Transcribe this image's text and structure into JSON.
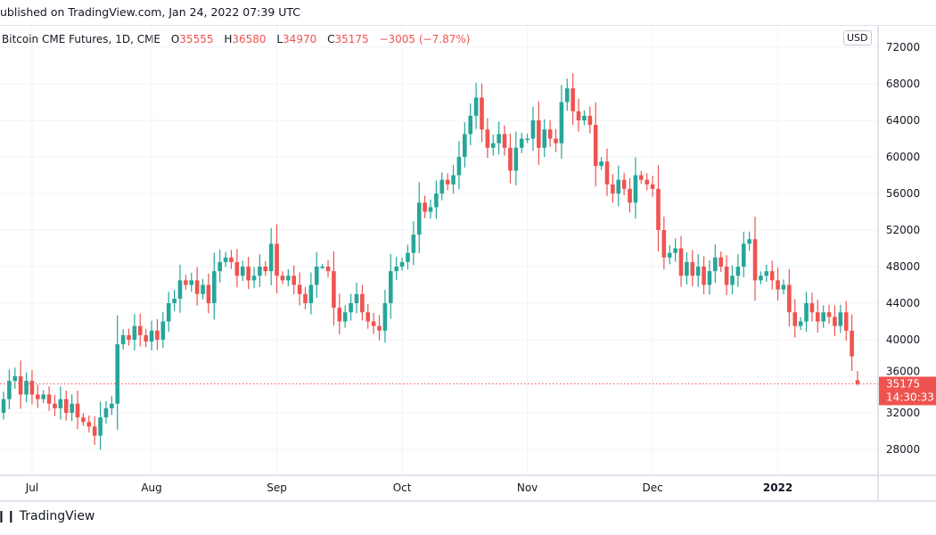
{
  "header": {
    "published": "ublished on TradingView.com, Jan 24, 2022 07:39 UTC",
    "symbol": "Bitcoin CME Futures, 1D, CME",
    "o_label": "O",
    "o_value": "35555",
    "h_label": "H",
    "h_value": "36580",
    "l_label": "L",
    "l_value": "34970",
    "c_label": "C",
    "c_value": "35175",
    "change": "−3005 (−7.87%)",
    "currency": "USD"
  },
  "footer": {
    "brand": "TradingView",
    "logo_icon": "tradingview-logo-icon"
  },
  "colors": {
    "up": "#26a69a",
    "down": "#ef5350",
    "grid": "#f0f3fa",
    "text": "#131722"
  },
  "chart_data": {
    "type": "candlestick",
    "title": "Bitcoin CME Futures, 1D, CME",
    "ylim": [
      26000,
      73500
    ],
    "y_ticks": [
      28000,
      32000,
      36000,
      40000,
      44000,
      48000,
      52000,
      56000,
      60000,
      64000,
      68000,
      72000
    ],
    "x_ticks": [
      {
        "label": "Jul",
        "candle_index": 5
      },
      {
        "label": "Aug",
        "candle_index": 26
      },
      {
        "label": "Sep",
        "candle_index": 48
      },
      {
        "label": "Oct",
        "candle_index": 70
      },
      {
        "label": "Nov",
        "candle_index": 92
      },
      {
        "label": "Dec",
        "candle_index": 114
      },
      {
        "label": "2022",
        "candle_index": 136
      }
    ],
    "grid": true,
    "closes": [
      33500,
      35500,
      36000,
      34000,
      35500,
      34000,
      33500,
      34000,
      33000,
      32500,
      33500,
      32000,
      33000,
      31500,
      31000,
      30500,
      29500,
      31500,
      32500,
      33000,
      39500,
      40500,
      40000,
      41500,
      40500,
      39800,
      41000,
      40000,
      42000,
      44000,
      44500,
      46500,
      46000,
      46500,
      45000,
      46000,
      44000,
      47500,
      48500,
      49000,
      48500,
      47000,
      48000,
      46500,
      47000,
      48000,
      47500,
      50500,
      47000,
      46500,
      47000,
      46000,
      45000,
      44000,
      46000,
      48000,
      48000,
      47500,
      43500,
      42000,
      43000,
      44000,
      45000,
      43000,
      42000,
      41500,
      41000,
      44000,
      47500,
      48000,
      48500,
      49500,
      51500,
      55000,
      54000,
      54500,
      56000,
      57500,
      57000,
      58000,
      60000,
      62500,
      64500,
      66500,
      63000,
      61000,
      61500,
      62500,
      61000,
      58500,
      61000,
      62000,
      62000,
      64000,
      61000,
      63000,
      62000,
      61500,
      66000,
      67500,
      65000,
      64000,
      64500,
      63500,
      59000,
      59500,
      57000,
      56000,
      57500,
      56500,
      55000,
      58000,
      57500,
      57000,
      56500,
      52000,
      49000,
      49500,
      50000,
      47000,
      48500,
      47000,
      48000,
      46000,
      47500,
      49000,
      48000,
      46000,
      47000,
      48000,
      50500,
      51000,
      46500,
      47000,
      47500,
      46500,
      45500,
      46000,
      43000,
      41500,
      42000,
      44000,
      43000,
      42000,
      43000,
      42500,
      41500,
      43000,
      41000,
      38180,
      35175
    ],
    "last_bar": {
      "open": 35555,
      "high": 36580,
      "low": 34970,
      "close": 35175
    },
    "last_price_label": "35175",
    "countdown": "14:30:33"
  }
}
